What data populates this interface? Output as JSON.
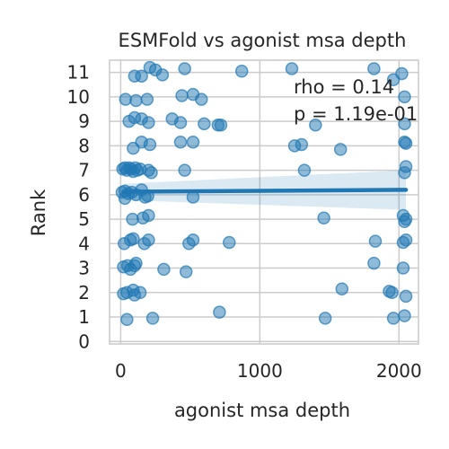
{
  "chart_data": {
    "type": "scatter",
    "title": "ESMFold vs agonist msa depth",
    "xlabel": "agonist msa depth",
    "ylabel": "Rank",
    "xlim": [
      -80,
      2140
    ],
    "ylim": [
      -0.1,
      11.5
    ],
    "xticks": [
      0,
      1000,
      2000
    ],
    "yticks": [
      0,
      1,
      2,
      3,
      4,
      5,
      6,
      7,
      8,
      9,
      10,
      11
    ],
    "grid": true,
    "annotations": [
      "rho = 0.14",
      "p = 1.19e-01"
    ],
    "regression": {
      "x": [
        20,
        2050
      ],
      "y": [
        6.12,
        6.2
      ],
      "ci_upper": [
        6.45,
        7.0
      ],
      "ci_lower": [
        5.78,
        5.38
      ]
    },
    "points": [
      {
        "x": 15,
        "y": 7.05
      },
      {
        "x": 30,
        "y": 7.1
      },
      {
        "x": 45,
        "y": 7.0
      },
      {
        "x": 60,
        "y": 7.1
      },
      {
        "x": 75,
        "y": 7.05
      },
      {
        "x": 90,
        "y": 6.95
      },
      {
        "x": 105,
        "y": 7.1
      },
      {
        "x": 120,
        "y": 7.0
      },
      {
        "x": 140,
        "y": 7.05
      },
      {
        "x": 200,
        "y": 7.0
      },
      {
        "x": 220,
        "y": 6.9
      },
      {
        "x": 460,
        "y": 7.0
      },
      {
        "x": 10,
        "y": 6.1
      },
      {
        "x": 30,
        "y": 6.15
      },
      {
        "x": 55,
        "y": 6.05
      },
      {
        "x": 80,
        "y": 6.1
      },
      {
        "x": 110,
        "y": 6.0
      },
      {
        "x": 150,
        "y": 6.2
      },
      {
        "x": 30,
        "y": 5.85
      },
      {
        "x": 175,
        "y": 5.9
      },
      {
        "x": 195,
        "y": 5.95
      },
      {
        "x": 520,
        "y": 5.9
      },
      {
        "x": 210,
        "y": 11.2
      },
      {
        "x": 250,
        "y": 11.1
      },
      {
        "x": 300,
        "y": 10.9
      },
      {
        "x": 460,
        "y": 11.15
      },
      {
        "x": 870,
        "y": 11.05
      },
      {
        "x": 1230,
        "y": 11.15
      },
      {
        "x": 1820,
        "y": 11.15
      },
      {
        "x": 2020,
        "y": 10.95
      },
      {
        "x": 100,
        "y": 10.85
      },
      {
        "x": 150,
        "y": 10.85
      },
      {
        "x": 1960,
        "y": 10.7
      },
      {
        "x": 35,
        "y": 9.9
      },
      {
        "x": 110,
        "y": 9.85
      },
      {
        "x": 190,
        "y": 9.9
      },
      {
        "x": 440,
        "y": 10.05
      },
      {
        "x": 520,
        "y": 10.1
      },
      {
        "x": 580,
        "y": 9.9
      },
      {
        "x": 2040,
        "y": 10.0
      },
      {
        "x": 60,
        "y": 9.0
      },
      {
        "x": 100,
        "y": 9.15
      },
      {
        "x": 150,
        "y": 9.1
      },
      {
        "x": 200,
        "y": 8.95
      },
      {
        "x": 370,
        "y": 9.1
      },
      {
        "x": 430,
        "y": 8.95
      },
      {
        "x": 600,
        "y": 8.9
      },
      {
        "x": 700,
        "y": 8.85
      },
      {
        "x": 720,
        "y": 8.85
      },
      {
        "x": 1400,
        "y": 8.85
      },
      {
        "x": 2040,
        "y": 8.9
      },
      {
        "x": 90,
        "y": 7.9
      },
      {
        "x": 150,
        "y": 8.15
      },
      {
        "x": 210,
        "y": 8.05
      },
      {
        "x": 430,
        "y": 8.15
      },
      {
        "x": 520,
        "y": 8.15
      },
      {
        "x": 1250,
        "y": 8.0
      },
      {
        "x": 1300,
        "y": 8.05
      },
      {
        "x": 1580,
        "y": 7.85
      },
      {
        "x": 2040,
        "y": 8.15
      },
      {
        "x": 2050,
        "y": 8.1
      },
      {
        "x": 1320,
        "y": 7.0
      },
      {
        "x": 2040,
        "y": 6.9
      },
      {
        "x": 2050,
        "y": 7.15
      },
      {
        "x": 85,
        "y": 5.0
      },
      {
        "x": 160,
        "y": 5.05
      },
      {
        "x": 200,
        "y": 5.15
      },
      {
        "x": 1460,
        "y": 5.05
      },
      {
        "x": 2030,
        "y": 5.15
      },
      {
        "x": 2040,
        "y": 4.9
      },
      {
        "x": 2050,
        "y": 5.0
      },
      {
        "x": 25,
        "y": 4.0
      },
      {
        "x": 70,
        "y": 4.15
      },
      {
        "x": 90,
        "y": 4.2
      },
      {
        "x": 170,
        "y": 4.0
      },
      {
        "x": 200,
        "y": 4.15
      },
      {
        "x": 490,
        "y": 4.0
      },
      {
        "x": 520,
        "y": 4.15
      },
      {
        "x": 780,
        "y": 4.05
      },
      {
        "x": 1830,
        "y": 4.1
      },
      {
        "x": 2030,
        "y": 4.05
      },
      {
        "x": 2050,
        "y": 4.15
      },
      {
        "x": 20,
        "y": 3.05
      },
      {
        "x": 50,
        "y": 3.1
      },
      {
        "x": 70,
        "y": 2.95
      },
      {
        "x": 100,
        "y": 3.1
      },
      {
        "x": 110,
        "y": 3.2
      },
      {
        "x": 310,
        "y": 2.95
      },
      {
        "x": 470,
        "y": 2.85
      },
      {
        "x": 1820,
        "y": 3.2
      },
      {
        "x": 2030,
        "y": 3.0
      },
      {
        "x": 20,
        "y": 1.95
      },
      {
        "x": 45,
        "y": 2.0
      },
      {
        "x": 90,
        "y": 2.1
      },
      {
        "x": 100,
        "y": 1.9
      },
      {
        "x": 140,
        "y": 2.0
      },
      {
        "x": 1590,
        "y": 2.15
      },
      {
        "x": 1930,
        "y": 2.05
      },
      {
        "x": 1950,
        "y": 2.0
      },
      {
        "x": 2050,
        "y": 1.85
      },
      {
        "x": 45,
        "y": 0.9
      },
      {
        "x": 230,
        "y": 0.95
      },
      {
        "x": 710,
        "y": 1.2
      },
      {
        "x": 1470,
        "y": 0.95
      },
      {
        "x": 1960,
        "y": 0.95
      },
      {
        "x": 2040,
        "y": 1.05
      }
    ]
  }
}
